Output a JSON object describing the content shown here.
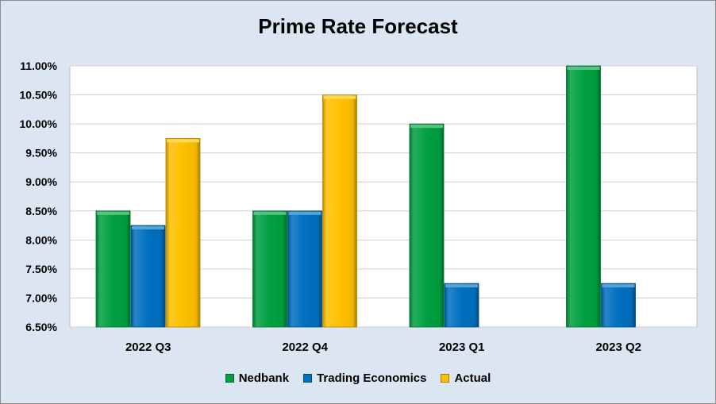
{
  "chart_data": {
    "type": "bar",
    "title": "Prime Rate Forecast",
    "categories": [
      "2022 Q3",
      "2022 Q4",
      "2023 Q1",
      "2023 Q2"
    ],
    "series": [
      {
        "name": "Nedbank",
        "values": [
          8.5,
          8.5,
          10.0,
          11.0
        ],
        "color": "#00a040"
      },
      {
        "name": "Trading Economics",
        "values": [
          8.25,
          8.5,
          7.25,
          7.25
        ],
        "color": "#0070c0"
      },
      {
        "name": "Actual",
        "values": [
          9.75,
          10.5,
          null,
          null
        ],
        "color": "#ffc000"
      }
    ],
    "yticks": [
      "6.50%",
      "7.00%",
      "7.50%",
      "8.00%",
      "8.50%",
      "9.00%",
      "9.50%",
      "10.00%",
      "10.50%",
      "11.00%"
    ],
    "ylim": [
      6.5,
      11.0
    ],
    "grid": true,
    "legend_position": "bottom"
  }
}
